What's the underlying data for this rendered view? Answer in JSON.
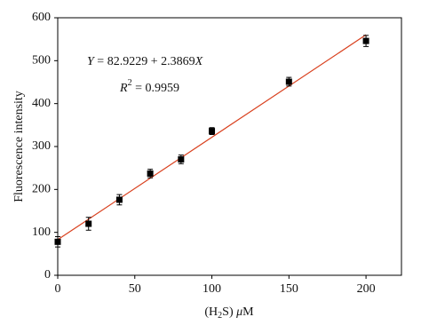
{
  "chart_data": {
    "type": "scatter",
    "x_label_parts": [
      "(H",
      "2",
      "S) ",
      "μ",
      "M"
    ],
    "y_label": "Fluorescence intensity",
    "equation_parts": [
      "Y",
      " = 82.9229 + 2.3869",
      "X"
    ],
    "r2_parts": [
      "R",
      "2",
      " = 0.9959"
    ],
    "x": [
      0,
      20,
      40,
      60,
      80,
      100,
      150,
      200
    ],
    "series": [
      {
        "color": "#000000",
        "values": [
          78,
          120,
          176,
          237,
          270,
          336,
          451,
          546
        ],
        "errors": [
          12,
          15,
          12,
          10,
          10,
          8,
          10,
          13
        ]
      }
    ],
    "fit": {
      "color": "#d9401e",
      "x": [
        0,
        200
      ],
      "values": [
        82.9229,
        560.3029
      ]
    },
    "xlim": [
      0,
      223
    ],
    "ylim": [
      0,
      600
    ],
    "xticks": [
      0,
      50,
      100,
      150,
      200
    ],
    "yticks": [
      0,
      100,
      200,
      300,
      400,
      500,
      600
    ]
  }
}
